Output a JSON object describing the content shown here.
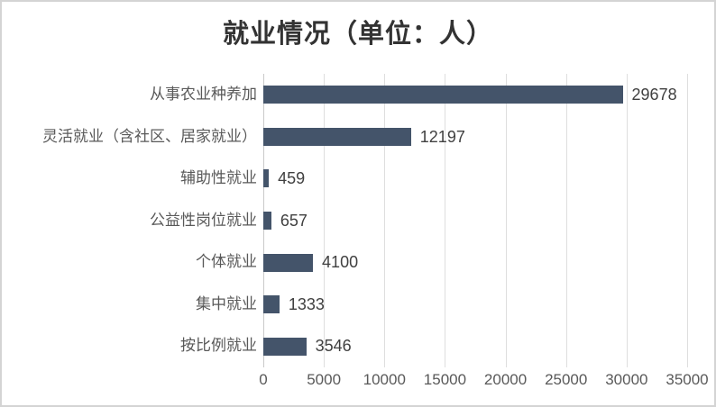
{
  "chart_data": {
    "type": "bar",
    "orientation": "horizontal",
    "title": "就业情况（单位：人）",
    "categories": [
      "从事农业种养加",
      "灵活就业（含社区、居家就业）",
      "辅助性就业",
      "公益性岗位就业",
      "个体就业",
      "集中就业",
      "按比例就业"
    ],
    "values": [
      29678,
      12197,
      459,
      657,
      4100,
      1333,
      3546
    ],
    "value_labels": [
      "29678",
      "12197",
      "459",
      "657",
      "4100",
      "1333",
      "3546"
    ],
    "xlim": [
      0,
      35000
    ],
    "x_ticks": [
      "0",
      "5000",
      "10000",
      "15000",
      "20000",
      "25000",
      "30000",
      "35000"
    ],
    "grid": true,
    "legend": false,
    "xlabel": "",
    "ylabel": "",
    "colors": {
      "bar": "#44546A",
      "gridline": "#DEDEDE",
      "axis_line": "#C9C9C9",
      "category_label": "#595959",
      "value_label": "#404040",
      "tick_label": "#595959",
      "title": "#333333",
      "border": "#D4D4D4"
    }
  }
}
